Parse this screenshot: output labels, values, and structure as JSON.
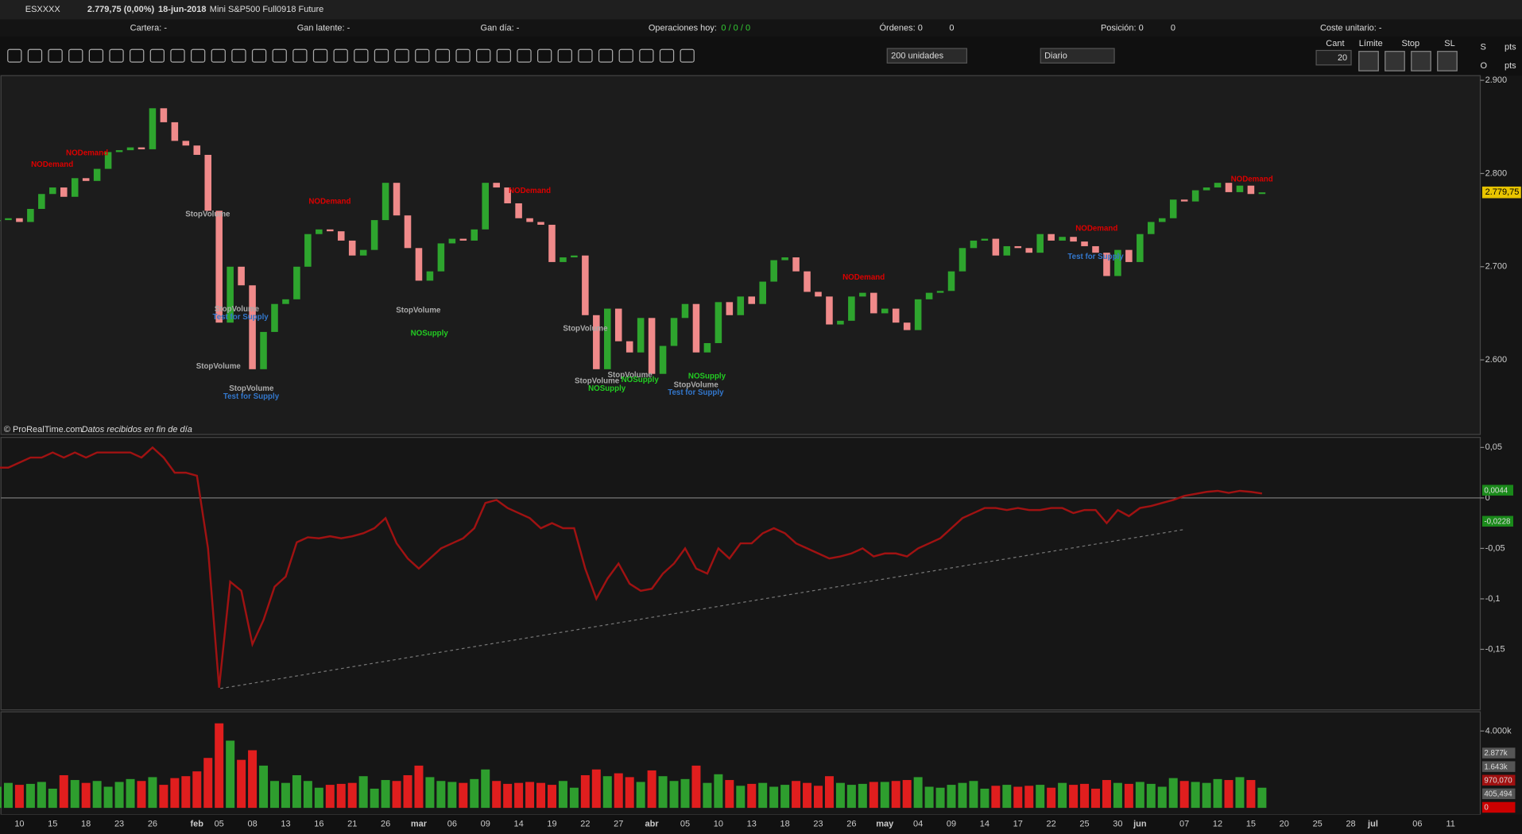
{
  "header": {
    "symbol": "ESXXXX",
    "quote": "2.779,75 (0,00%)",
    "date": "18-jun-2018",
    "instrument": "Mini S&P500 Full0918 Future"
  },
  "account": {
    "cartera": "Cartera: -",
    "gan_latente": "Gan latente: -",
    "gan_dia": "Gan día: -",
    "operaciones": "Operaciones hoy:",
    "operaciones_value": "0 / 0 / 0",
    "ordenes": "Órdenes: 0",
    "ordenes_value": "0",
    "posicion": "Posición: 0",
    "posicion_value": "0",
    "coste": "Coste unitario: -"
  },
  "toolbar": {
    "units": "200 unidades",
    "period": "Diario",
    "cant": "Cant",
    "cant_value": "20",
    "limite": "Límite",
    "stop": "Stop",
    "sl": "SL",
    "s": "S",
    "o": "O",
    "pts1": "pts",
    "pts2": "pts"
  },
  "footer": {
    "copyright": "© ProRealTime.com",
    "note": "Datos recibidos en fin de día"
  },
  "annotations": [
    "NODemand",
    "NODemand",
    "StopVolume",
    "StopVolume",
    "Test for Supply",
    "StopVolume",
    "StopVolume",
    "Test for Supply",
    "NODemand",
    "StopVolume",
    "NOSupply",
    "NODemand",
    "StopVolume",
    "StopVolume",
    "StopVolume",
    "NOSupply",
    "NOSupply",
    "NOSupply",
    "StopVolume",
    "Test for Supply",
    "NODemand",
    "NODemand",
    "Test for Supply",
    "NODemand"
  ],
  "chart_data": [
    {
      "type": "candlestick",
      "close": [
        2750,
        2752,
        2748,
        2762,
        2778,
        2785,
        2775,
        2795,
        2792,
        2805,
        2823,
        2825,
        2828,
        2826,
        2870,
        2855,
        2835,
        2830,
        2820,
        2760,
        2640,
        2700,
        2680,
        2590,
        2630,
        2660,
        2665,
        2700,
        2735,
        2740,
        2738,
        2728,
        2712,
        2718,
        2750,
        2790,
        2755,
        2720,
        2685,
        2695,
        2725,
        2730,
        2728,
        2740,
        2790,
        2785,
        2768,
        2752,
        2748,
        2745,
        2705,
        2710,
        2712,
        2648,
        2590,
        2655,
        2620,
        2608,
        2645,
        2585,
        2615,
        2645,
        2660,
        2608,
        2618,
        2662,
        2648,
        2668,
        2660,
        2684,
        2707,
        2710,
        2695,
        2673,
        2668,
        2638,
        2642,
        2668,
        2672,
        2650,
        2655,
        2640,
        2632,
        2665,
        2672,
        2674,
        2695,
        2720,
        2728,
        2730,
        2712,
        2722,
        2720,
        2715,
        2735,
        2728,
        2732,
        2727,
        2722,
        2715,
        2690,
        2718,
        2705,
        2735,
        2748,
        2752,
        2772,
        2770,
        2782,
        2785,
        2790,
        2780,
        2787,
        2778,
        2779.75
      ],
      "up_color": "#2ea52e",
      "down_color": "#f08a8a",
      "ylim": [
        2520,
        2905
      ],
      "yticks": [
        {
          "value": 2900,
          "label": "2.900"
        },
        {
          "value": 2800,
          "label": "2.800"
        },
        {
          "value": 2700,
          "label": "2.700"
        },
        {
          "value": 2600,
          "label": "2.600"
        }
      ],
      "last_label": "2.779,75",
      "x_labels": [
        "10",
        "15",
        "18",
        "23",
        "26",
        "feb",
        "05",
        "08",
        "13",
        "16",
        "21",
        "26",
        "mar",
        "06",
        "09",
        "14",
        "19",
        "22",
        "27",
        "abr",
        "05",
        "10",
        "13",
        "18",
        "23",
        "26",
        "may",
        "04",
        "09",
        "14",
        "17",
        "22",
        "25",
        "30",
        "jun",
        "07",
        "12",
        "15",
        "20",
        "25",
        "28",
        "jul",
        "06",
        "11"
      ]
    },
    {
      "type": "line",
      "values": [
        0.03,
        0.03,
        0.035,
        0.04,
        0.04,
        0.045,
        0.04,
        0.045,
        0.04,
        0.045,
        0.045,
        0.045,
        0.045,
        0.04,
        0.05,
        0.04,
        0.025,
        0.025,
        0.022,
        -0.05,
        -0.188,
        -0.083,
        -0.092,
        -0.145,
        -0.121,
        -0.088,
        -0.078,
        -0.044,
        -0.039,
        -0.04,
        -0.038,
        -0.04,
        -0.038,
        -0.035,
        -0.03,
        -0.02,
        -0.045,
        -0.06,
        -0.07,
        -0.06,
        -0.05,
        -0.045,
        -0.04,
        -0.03,
        -0.005,
        -0.002,
        -0.01,
        -0.015,
        -0.02,
        -0.03,
        -0.025,
        -0.03,
        -0.03,
        -0.07,
        -0.1,
        -0.08,
        -0.065,
        -0.085,
        -0.092,
        -0.09,
        -0.075,
        -0.065,
        -0.05,
        -0.07,
        -0.075,
        -0.05,
        -0.06,
        -0.045,
        -0.045,
        -0.035,
        -0.03,
        -0.035,
        -0.045,
        -0.05,
        -0.055,
        -0.06,
        -0.058,
        -0.055,
        -0.05,
        -0.058,
        -0.055,
        -0.055,
        -0.058,
        -0.05,
        -0.045,
        -0.04,
        -0.03,
        -0.02,
        -0.015,
        -0.01,
        -0.01,
        -0.012,
        -0.01,
        -0.012,
        -0.012,
        -0.01,
        -0.01,
        -0.015,
        -0.012,
        -0.012,
        -0.025,
        -0.012,
        -0.018,
        -0.01,
        -0.008,
        -0.005,
        -0.002,
        0.002,
        0.004,
        0.006,
        0.007,
        0.005,
        0.007,
        0.006,
        0.0044
      ],
      "color": "#a01212",
      "ylim": [
        -0.21,
        0.06
      ],
      "yticks": [
        {
          "value": 0.05,
          "label": "0,05"
        },
        0,
        {
          "value": -0.05,
          "label": "-0,05"
        },
        {
          "value": -0.1,
          "label": "-0,1"
        },
        {
          "value": -0.15,
          "label": "-0,15"
        }
      ],
      "tags": [
        "0,0044",
        "-0,0228"
      ]
    },
    {
      "type": "bar",
      "values": [
        1100,
        1300,
        1200,
        1250,
        1350,
        1000,
        1700,
        1450,
        1300,
        1400,
        1100,
        1350,
        1500,
        1400,
        1600,
        1200,
        1550,
        1650,
        1900,
        2600,
        4400,
        3500,
        2500,
        3000,
        2200,
        1400,
        1300,
        1700,
        1400,
        1050,
        1200,
        1250,
        1300,
        1650,
        1000,
        1450,
        1400,
        1700,
        2200,
        1600,
        1400,
        1350,
        1300,
        1500,
        2000,
        1400,
        1250,
        1300,
        1350,
        1300,
        1200,
        1400,
        1050,
        1700,
        2000,
        1650,
        1800,
        1600,
        1350,
        1950,
        1650,
        1400,
        1500,
        2200,
        1300,
        1750,
        1450,
        1150,
        1250,
        1300,
        1100,
        1200,
        1400,
        1300,
        1150,
        1650,
        1300,
        1200,
        1250,
        1350,
        1350,
        1400,
        1450,
        1600,
        1100,
        1050,
        1200,
        1300,
        1400,
        1000,
        1150,
        1200,
        1100,
        1150,
        1200,
        1050,
        1300,
        1200,
        1250,
        1000,
        1450,
        1300,
        1250,
        1350,
        1250,
        1100,
        1550,
        1400,
        1350,
        1300,
        1500,
        1450,
        1600,
        1450,
        1050
      ],
      "up_color": "#2e9e2e",
      "down_color": "#e01e1e",
      "ylim": [
        -350,
        5000
      ],
      "yticks": [
        {
          "value": 4000,
          "label": "4.000k"
        }
      ],
      "tags": [
        "2.877k",
        "1.643k",
        "970,070",
        "405,494",
        "0"
      ]
    }
  ]
}
